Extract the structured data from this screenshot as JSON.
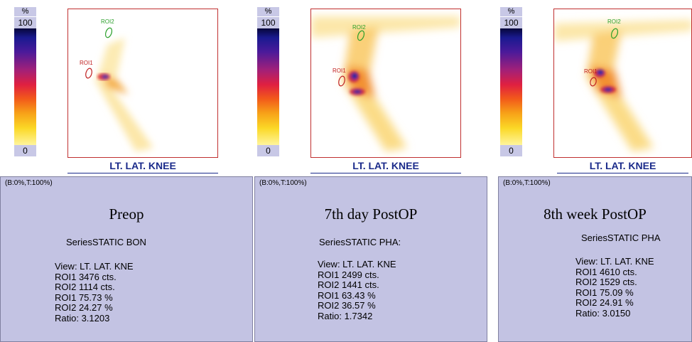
{
  "panels": [
    {
      "scale_unit": "%",
      "scale_top": "100",
      "scale_bottom": "0",
      "roi_a": "ROI2",
      "roi_b": "ROI1",
      "view_label": "LT. LAT. KNEE",
      "bt_label": "(B:0%,T:100%)",
      "title": "Preop",
      "series": "SeriesSTATIC BON",
      "stats": [
        "View: LT. LAT. KNE",
        "ROI1  3476 cts.",
        "ROI2  1114 cts.",
        "ROI1  75.73 %",
        "ROI2  24.27 %",
        "Ratio: 3.1203"
      ]
    },
    {
      "scale_unit": "%",
      "scale_top": "100",
      "scale_bottom": "0",
      "roi_a": "ROI2",
      "roi_b": "ROI1",
      "view_label": "LT. LAT. KNEE",
      "bt_label": "(B:0%,T:100%)",
      "title": "7th day PostOP",
      "series": "SeriesSTATIC PHA:",
      "stats": [
        "View: LT. LAT. KNE",
        "ROI1  2499 cts.",
        "ROI2  1441 cts.",
        "ROI1  63.43 %",
        "ROI2  36.57 %",
        "Ratio: 1.7342"
      ]
    },
    {
      "scale_unit": "%",
      "scale_top": "100",
      "scale_bottom": "0",
      "roi_a": "ROI2",
      "roi_b": "ROI1",
      "view_label": "LT. LAT. KNEE",
      "bt_label": "(B:0%,T:100%)",
      "title": "8th week PostOP",
      "series": "SeriesSTATIC PHA",
      "stats": [
        "View: LT. LAT. KNE",
        "ROI1  4610 cts.",
        "ROI2  1529 cts.",
        "ROI1  75.09 %",
        "ROI2  24.91 %",
        "Ratio: 3.0150"
      ]
    }
  ],
  "colors": {
    "panel_bg": "#c3c3e3",
    "label_blue": "#1a2a8a",
    "roi_green": "#2ca02c",
    "roi_red": "#c02020",
    "frame_red": "#c03030"
  }
}
